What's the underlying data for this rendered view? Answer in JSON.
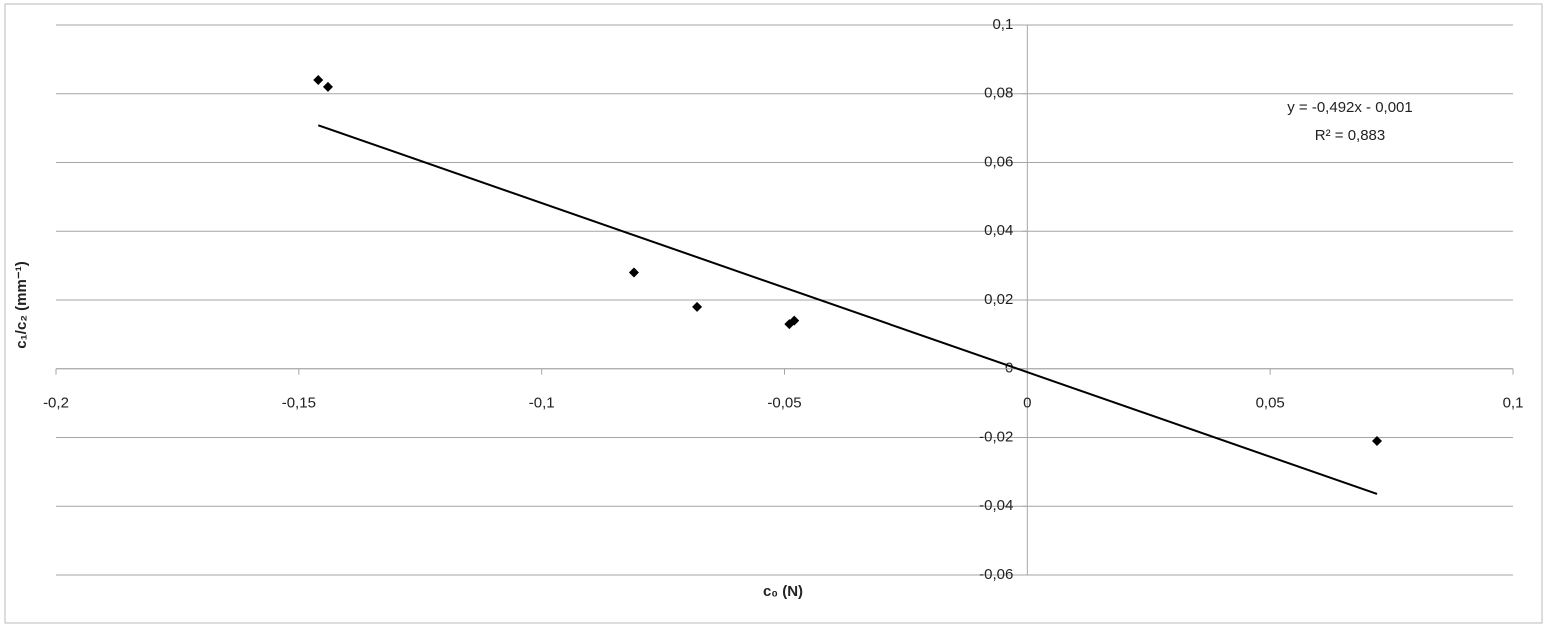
{
  "chart_data": {
    "type": "scatter",
    "x_label": "c₀ (N)",
    "y_label": "c₁/c₂ (mm⁻¹)",
    "series": [
      {
        "color": "#000000",
        "x": [
          -0.146,
          -0.144,
          -0.081,
          -0.068,
          -0.049,
          -0.048,
          0.072
        ],
        "values": [
          0.084,
          0.082,
          0.028,
          0.018,
          0.013,
          0.014,
          -0.021
        ]
      }
    ],
    "trendline": {
      "slope": -0.492,
      "intercept": -0.001,
      "color": "#000000",
      "equation": "y = -0,492x - 0,001",
      "r2": "R² = 0,883"
    },
    "xlim": [
      -0.2,
      0.1
    ],
    "xticks": [
      {
        "value": -0.2,
        "label": "-0,2"
      },
      {
        "value": -0.15,
        "label": "-0,15"
      },
      {
        "value": -0.1,
        "label": "-0,1"
      },
      {
        "value": -0.05,
        "label": "-0,05"
      },
      0,
      {
        "value": 0.05,
        "label": "0,05"
      },
      {
        "value": 0.1,
        "label": "0,1"
      }
    ],
    "ylim": [
      -0.06,
      0.1
    ],
    "yticks": [
      {
        "value": -0.06,
        "label": "-0,06"
      },
      {
        "value": -0.04,
        "label": "-0,04"
      },
      {
        "value": -0.02,
        "label": "-0,02"
      },
      0,
      {
        "value": 0.02,
        "label": "0,02"
      },
      {
        "value": 0.04,
        "label": "0,04"
      },
      {
        "value": 0.06,
        "label": "0,06"
      },
      {
        "value": 0.08,
        "label": "0,08"
      },
      {
        "value": 0.1,
        "label": "0,1"
      }
    ],
    "grid": true
  }
}
